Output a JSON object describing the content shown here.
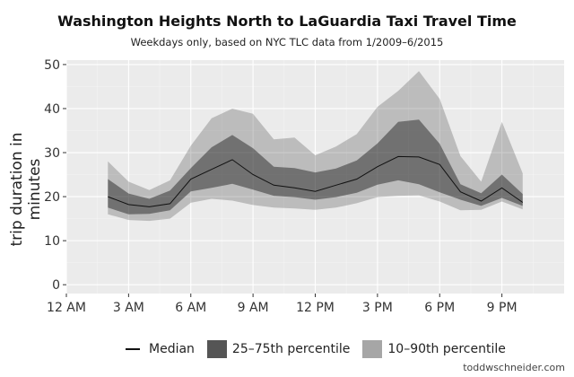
{
  "chart_data": {
    "type": "area",
    "title": "Washington Heights North to LaGuardia Taxi Travel Time",
    "subtitle": "Weekdays only, based on NYC TLC data from 1/2009–6/2015",
    "xlabel": "",
    "ylabel": "trip duration in minutes",
    "x_ticks": [
      "12 AM",
      "3 AM",
      "6 AM",
      "9 AM",
      "12 PM",
      "3 PM",
      "6 PM",
      "9 PM"
    ],
    "y_ticks": [
      0,
      10,
      20,
      30,
      40,
      50
    ],
    "xlim": [
      0,
      24
    ],
    "ylim": [
      -2,
      51
    ],
    "grid": true,
    "legend_position": "bottom",
    "x": [
      2,
      3,
      4,
      5,
      6,
      7,
      8,
      9,
      10,
      11,
      12,
      13,
      14,
      15,
      16,
      17,
      18,
      19,
      20,
      21,
      22
    ],
    "series": [
      {
        "name": "Median",
        "values": [
          20,
          18.2,
          17.7,
          18.4,
          24,
          26.2,
          28.4,
          25,
          22.6,
          22,
          21.2,
          22.6,
          24,
          26.8,
          29.1,
          29,
          27.3,
          21.1,
          19,
          22,
          18.7
        ]
      },
      {
        "name": "25–75th percentile",
        "lower": [
          17.5,
          16,
          16.1,
          16.9,
          21.2,
          22,
          22.9,
          21.6,
          20.2,
          19.9,
          19.3,
          19.9,
          20.9,
          22.7,
          23.7,
          22.8,
          21,
          19.3,
          17.9,
          19.7,
          17.9
        ],
        "upper": [
          24,
          20.7,
          19.5,
          21.4,
          26.5,
          31.2,
          34,
          31,
          26.8,
          26.5,
          25.5,
          26.4,
          28.2,
          32.1,
          37,
          37.5,
          32,
          22.8,
          20.8,
          25,
          20.6
        ]
      },
      {
        "name": "10–90th percentile",
        "lower": [
          16,
          14.7,
          14.5,
          15,
          18.6,
          19.5,
          19.1,
          18.1,
          17.5,
          17.3,
          17,
          17.5,
          18.5,
          19.9,
          20.2,
          20.3,
          18.9,
          16.9,
          17,
          18.9,
          17.1
        ],
        "upper": [
          28,
          23.4,
          21.5,
          23.7,
          31.6,
          37.8,
          40,
          38.8,
          33,
          33.4,
          29.4,
          31.4,
          34.2,
          40.4,
          44,
          48.5,
          42.2,
          29.2,
          23.4,
          37,
          25.3
        ]
      }
    ]
  },
  "credit": "toddwschneider.com",
  "colors": {
    "background": "#ebebeb",
    "grid_major": "#ffffff",
    "grid_minor": "#f4f4f4",
    "band_outer": "#bdbdbd",
    "band_inner": "#555555",
    "band_mid": "#8a8a8a",
    "median": "#111111"
  }
}
